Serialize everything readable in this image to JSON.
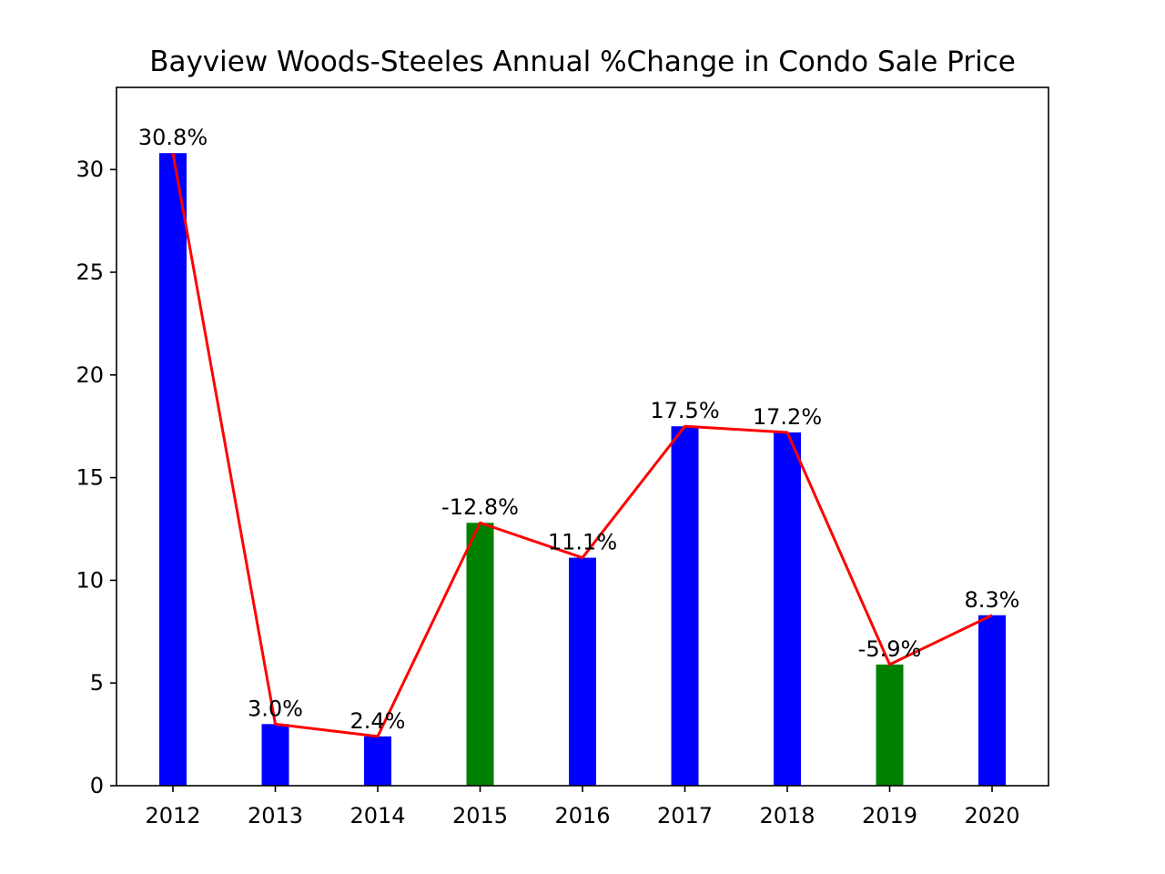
{
  "chart_data": {
    "type": "bar",
    "title": "Bayview Woods-Steeles Annual %Change in Condo Sale Price",
    "xlabel": "",
    "ylabel": "",
    "categories": [
      "2012",
      "2013",
      "2014",
      "2015",
      "2016",
      "2017",
      "2018",
      "2019",
      "2020"
    ],
    "values": [
      30.8,
      3.0,
      2.4,
      12.8,
      11.1,
      17.5,
      17.2,
      5.9,
      8.3
    ],
    "data_labels": [
      "30.8%",
      "3.0%",
      "2.4%",
      "-12.8%",
      "11.1%",
      "17.5%",
      "17.2%",
      "-5.9%",
      "8.3%"
    ],
    "bar_colors": [
      "#0000ff",
      "#0000ff",
      "#0000ff",
      "#008000",
      "#0000ff",
      "#0000ff",
      "#0000ff",
      "#008000",
      "#0000ff"
    ],
    "line_color": "#ff0000",
    "line_values": [
      30.8,
      3.0,
      2.4,
      12.8,
      11.1,
      17.5,
      17.2,
      5.9,
      8.3
    ],
    "ylim": [
      0,
      34
    ],
    "yticks": [
      0,
      5,
      10,
      15,
      20,
      25,
      30
    ],
    "grid": false,
    "legend": "none"
  }
}
